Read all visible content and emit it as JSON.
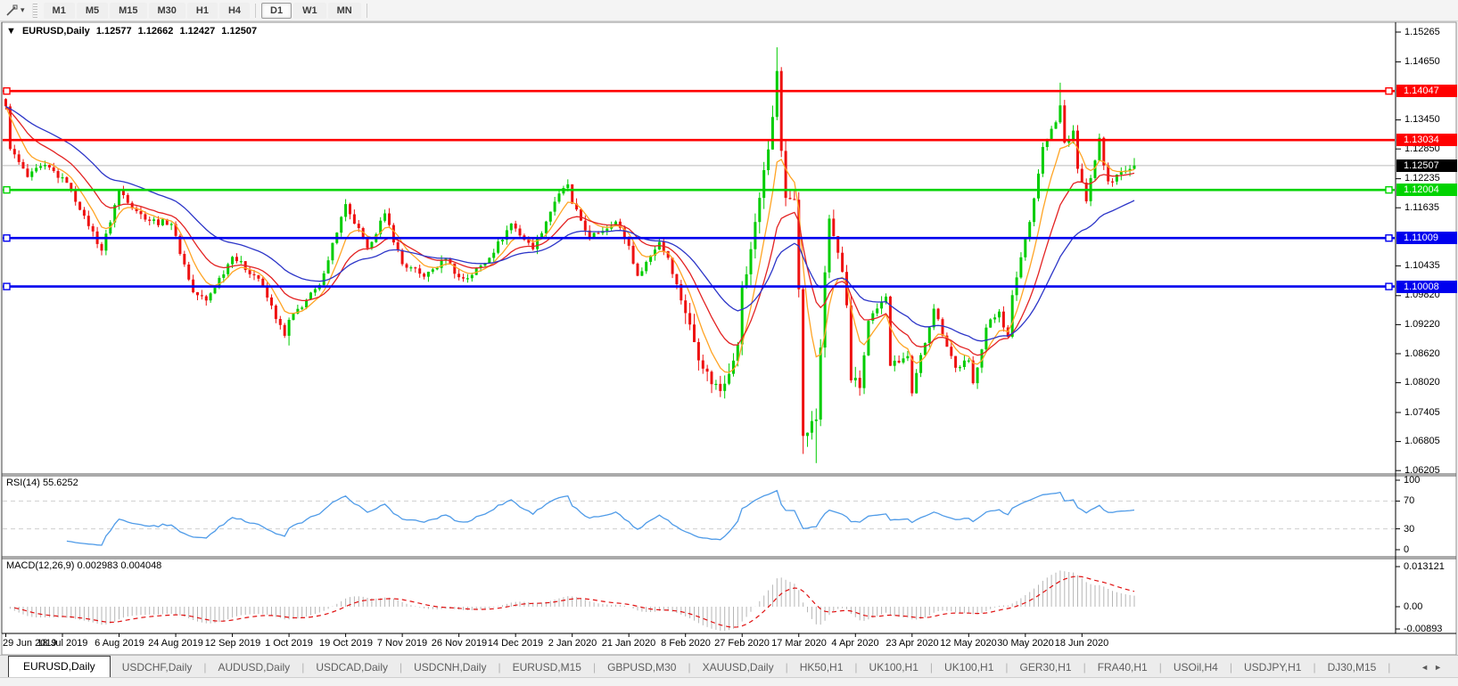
{
  "toolbar": {
    "chart_tool_icon": "crosshair-cursor",
    "dropdown_caret": "▾",
    "timeframes": [
      {
        "label": "M1",
        "active": false
      },
      {
        "label": "M5",
        "active": false
      },
      {
        "label": "M15",
        "active": false
      },
      {
        "label": "M30",
        "active": false
      },
      {
        "label": "H1",
        "active": false
      },
      {
        "label": "H4",
        "active": false
      },
      {
        "label": "D1",
        "active": true
      },
      {
        "label": "W1",
        "active": false
      },
      {
        "label": "MN",
        "active": false
      }
    ]
  },
  "chart_title": {
    "marker": "▼",
    "symbol": "EURUSD,Daily",
    "open": "1.12577",
    "high": "1.12662",
    "low": "1.12427",
    "close": "1.12507"
  },
  "chart_data": {
    "type": "candlestick",
    "symbol": "EURUSD",
    "period": "Daily",
    "bars": 260,
    "colors": {
      "up": "#00cc00",
      "down": "#ee1111",
      "ma_fast": "#ffa424",
      "ma_mid": "#e32222",
      "ma_slow": "#2c35c8",
      "rsi": "#4f9be8",
      "macd_hist": "#b6b6b6",
      "macd_signal": "#e01010",
      "current_line": "#bbbbbb",
      "level_dash": "#cfcfcf",
      "hline_red": "#ff0000",
      "hline_green": "#00d300",
      "hline_blue": "#0000ee",
      "current_tag_bg": "#000000"
    },
    "price_axis": {
      "ticks": [
        "1.15265",
        "1.14650",
        "1.13450",
        "1.12850",
        "1.12235",
        "1.11635",
        "1.10435",
        "1.09820",
        "1.09220",
        "1.08620",
        "1.08020",
        "1.07405",
        "1.06805",
        "1.06205"
      ]
    },
    "hlines": [
      {
        "price": 1.14047,
        "label": "1.14047",
        "color": "#ff0000",
        "handles": true
      },
      {
        "price": 1.13034,
        "label": "1.13034",
        "color": "#ff0000",
        "handles": false
      },
      {
        "price": 1.12004,
        "label": "1.12004",
        "color": "#00d300",
        "handles": true
      },
      {
        "price": 1.11009,
        "label": "1.11009",
        "color": "#0000ee",
        "handles": true
      },
      {
        "price": 1.10008,
        "label": "1.10008",
        "color": "#0000ee",
        "handles": true
      }
    ],
    "current_price": {
      "value": 1.12507,
      "label": "1.12507"
    },
    "last_bar": {
      "open": 1.12577,
      "high": 1.12662,
      "low": 1.12427,
      "close": 1.12507
    },
    "close_waypoints": [
      [
        0,
        1.1373
      ],
      [
        1,
        1.1285
      ],
      [
        5,
        1.1227
      ],
      [
        9,
        1.1252
      ],
      [
        14,
        1.1215
      ],
      [
        18,
        1.1147
      ],
      [
        22,
        1.1075
      ],
      [
        26,
        1.12
      ],
      [
        32,
        1.1139
      ],
      [
        38,
        1.113
      ],
      [
        43,
        1.0989
      ],
      [
        46,
        1.0972
      ],
      [
        52,
        1.1062
      ],
      [
        58,
        1.1017
      ],
      [
        64,
        1.0899
      ],
      [
        65,
        1.0932
      ],
      [
        72,
        1.1004
      ],
      [
        78,
        1.1171
      ],
      [
        79,
        1.115
      ],
      [
        83,
        1.108
      ],
      [
        87,
        1.1152
      ],
      [
        91,
        1.1047
      ],
      [
        96,
        1.1021
      ],
      [
        101,
        1.1058
      ],
      [
        104,
        1.102
      ],
      [
        106,
        1.1018
      ],
      [
        111,
        1.106
      ],
      [
        116,
        1.1131
      ],
      [
        121,
        1.1078
      ],
      [
        126,
        1.1176
      ],
      [
        129,
        1.1212
      ],
      [
        130,
        1.1172
      ],
      [
        134,
        1.1103
      ],
      [
        140,
        1.1135
      ],
      [
        143,
        1.1085
      ],
      [
        145,
        1.1023
      ],
      [
        150,
        1.1093
      ],
      [
        152,
        1.106
      ],
      [
        156,
        1.0946
      ],
      [
        160,
        1.0831
      ],
      [
        164,
        1.0785
      ],
      [
        168,
        1.0881
      ],
      [
        169,
        1.1
      ],
      [
        170,
        1.1026
      ],
      [
        172,
        1.1134
      ],
      [
        175,
        1.1284
      ],
      [
        177,
        1.1446
      ],
      [
        178,
        1.1281
      ],
      [
        179,
        1.1184
      ],
      [
        181,
        1.118
      ],
      [
        182,
        1.0995
      ],
      [
        183,
        1.0692
      ],
      [
        186,
        1.0726
      ],
      [
        188,
        1.103
      ],
      [
        189,
        1.1141
      ],
      [
        192,
        1.1031
      ],
      [
        193,
        1.0962
      ],
      [
        194,
        1.0807
      ],
      [
        196,
        1.0791
      ],
      [
        198,
        1.093
      ],
      [
        202,
        1.098
      ],
      [
        203,
        1.0837
      ],
      [
        207,
        1.0857
      ],
      [
        208,
        1.078
      ],
      [
        209,
        1.0822
      ],
      [
        213,
        1.0955
      ],
      [
        218,
        1.0833
      ],
      [
        221,
        1.0848
      ],
      [
        222,
        1.0801
      ],
      [
        225,
        1.0916
      ],
      [
        228,
        1.0949
      ],
      [
        230,
        1.0897
      ],
      [
        231,
        1.0983
      ],
      [
        234,
        1.1101
      ],
      [
        235,
        1.1134
      ],
      [
        237,
        1.1234
      ],
      [
        238,
        1.1289
      ],
      [
        241,
        1.134
      ],
      [
        242,
        1.1375
      ],
      [
        243,
        1.1298
      ],
      [
        245,
        1.1323
      ],
      [
        246,
        1.1244
      ],
      [
        248,
        1.1177
      ],
      [
        250,
        1.1261
      ],
      [
        251,
        1.1308
      ],
      [
        252,
        1.1251
      ],
      [
        253,
        1.1218
      ],
      [
        255,
        1.1232
      ],
      [
        257,
        1.124
      ],
      [
        259,
        1.12507
      ]
    ],
    "wick_highs": [
      [
        0,
        1.139
      ],
      [
        177,
        1.1495
      ],
      [
        242,
        1.1422
      ]
    ],
    "wick_lows": [
      [
        65,
        1.0879
      ],
      [
        164,
        1.0778
      ],
      [
        183,
        1.0655
      ],
      [
        186,
        1.0636
      ]
    ],
    "volatility": [
      [
        0,
        155,
        0.0013
      ],
      [
        156,
        196,
        0.0028
      ],
      [
        197,
        234,
        0.0015
      ],
      [
        235,
        259,
        0.0014
      ]
    ],
    "moving_averages": [
      {
        "period": 7,
        "color_key": "ma_fast"
      },
      {
        "period": 16,
        "color_key": "ma_mid"
      },
      {
        "period": 34,
        "color_key": "ma_slow"
      }
    ],
    "rsi": {
      "name": "RSI(14)",
      "value": "55.6252",
      "period": 14,
      "axis_labels": [
        "100",
        "70",
        "30",
        "0"
      ],
      "level_lines": [
        70,
        30
      ]
    },
    "macd": {
      "name": "MACD(12,26,9)",
      "values": "0.002983 0.004048",
      "fast": 12,
      "slow": 26,
      "signal": 9,
      "axis_labels": [
        "0.013121",
        "0.00",
        "-0.00893"
      ],
      "axis_max": 0.013121,
      "axis_min": -0.00893
    },
    "x_labels": [
      "29 Jun 2019",
      "18 Jul 2019",
      "6 Aug 2019",
      "24 Aug 2019",
      "12 Sep 2019",
      "1 Oct 2019",
      "19 Oct 2019",
      "7 Nov 2019",
      "26 Nov 2019",
      "14 Dec 2019",
      "2 Jan 2020",
      "21 Jan 2020",
      "8 Feb 2020",
      "27 Feb 2020",
      "17 Mar 2020",
      "4 Apr 2020",
      "23 Apr 2020",
      "12 May 2020",
      "30 May 2020",
      "18 Jun 2020"
    ],
    "x_label_step": 13
  },
  "tabs": {
    "items": [
      {
        "label": "EURUSD,Daily",
        "active": true
      },
      {
        "label": "USDCHF,Daily",
        "active": false
      },
      {
        "label": "AUDUSD,Daily",
        "active": false
      },
      {
        "label": "USDCAD,Daily",
        "active": false
      },
      {
        "label": "USDCNH,Daily",
        "active": false
      },
      {
        "label": "EURUSD,M15",
        "active": false
      },
      {
        "label": "GBPUSD,M30",
        "active": false
      },
      {
        "label": "XAUUSD,Daily",
        "active": false
      },
      {
        "label": "HK50,H1",
        "active": false
      },
      {
        "label": "UK100,H1",
        "active": false
      },
      {
        "label": "UK100,H1",
        "active": false
      },
      {
        "label": "GER30,H1",
        "active": false
      },
      {
        "label": "FRA40,H1",
        "active": false
      },
      {
        "label": "USOil,H4",
        "active": false
      },
      {
        "label": "USDJPY,H1",
        "active": false
      },
      {
        "label": "DJ30,M15",
        "active": false
      }
    ],
    "scroll_left": "◄",
    "scroll_right": "►"
  }
}
